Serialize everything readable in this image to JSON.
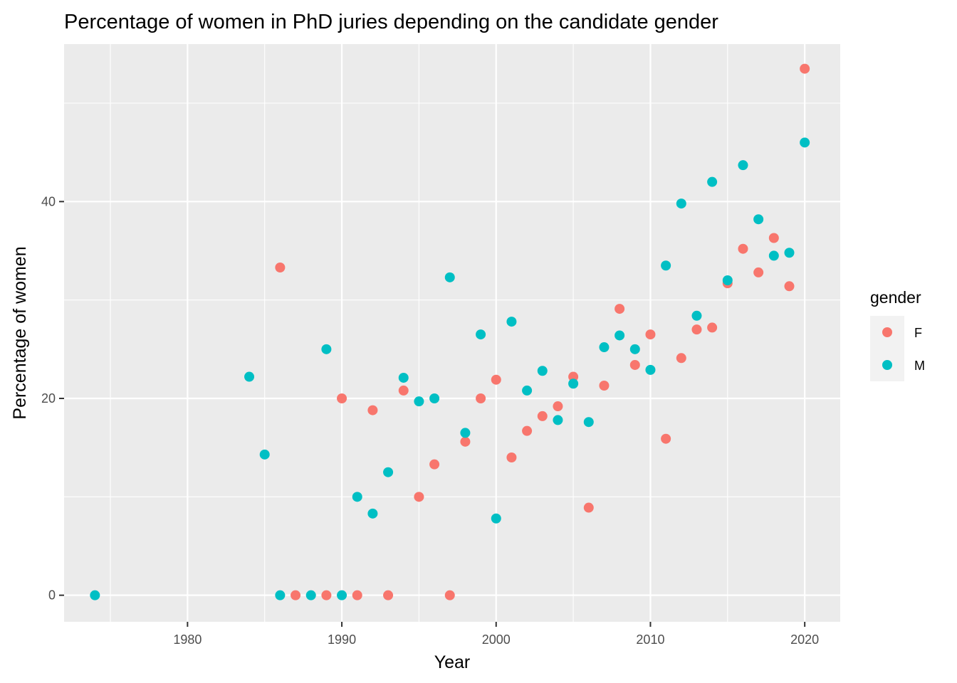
{
  "chart_data": {
    "type": "scatter",
    "title": "Percentage of women in PhD juries depending on the candidate gender",
    "xlabel": "Year",
    "ylabel": "Percentage of women",
    "xlim": [
      1972,
      2022.3
    ],
    "ylim": [
      -2.7,
      56
    ],
    "x_ticks": [
      1980,
      1990,
      2000,
      2010,
      2020
    ],
    "y_ticks": [
      0,
      20,
      40
    ],
    "grid": true,
    "legend": {
      "title": "gender",
      "position": "right"
    },
    "series": [
      {
        "name": "F",
        "color": "#F8766D",
        "points": [
          {
            "x": 1986,
            "y": 33.3
          },
          {
            "x": 1987,
            "y": 0
          },
          {
            "x": 1989,
            "y": 0
          },
          {
            "x": 1990,
            "y": 20
          },
          {
            "x": 1991,
            "y": 0
          },
          {
            "x": 1992,
            "y": 18.8
          },
          {
            "x": 1993,
            "y": 0
          },
          {
            "x": 1994,
            "y": 20.8
          },
          {
            "x": 1995,
            "y": 10
          },
          {
            "x": 1996,
            "y": 13.3
          },
          {
            "x": 1997,
            "y": 0
          },
          {
            "x": 1998,
            "y": 15.6
          },
          {
            "x": 1999,
            "y": 20
          },
          {
            "x": 2000,
            "y": 21.9
          },
          {
            "x": 2001,
            "y": 14
          },
          {
            "x": 2002,
            "y": 16.7
          },
          {
            "x": 2003,
            "y": 18.2
          },
          {
            "x": 2004,
            "y": 19.2
          },
          {
            "x": 2005,
            "y": 22.2
          },
          {
            "x": 2006,
            "y": 8.9
          },
          {
            "x": 2007,
            "y": 21.3
          },
          {
            "x": 2008,
            "y": 29.1
          },
          {
            "x": 2009,
            "y": 23.4
          },
          {
            "x": 2010,
            "y": 26.5
          },
          {
            "x": 2011,
            "y": 15.9
          },
          {
            "x": 2012,
            "y": 24.1
          },
          {
            "x": 2013,
            "y": 27
          },
          {
            "x": 2014,
            "y": 27.2
          },
          {
            "x": 2015,
            "y": 31.7
          },
          {
            "x": 2016,
            "y": 35.2
          },
          {
            "x": 2017,
            "y": 32.8
          },
          {
            "x": 2018,
            "y": 36.3
          },
          {
            "x": 2019,
            "y": 31.4
          },
          {
            "x": 2020,
            "y": 53.5
          }
        ]
      },
      {
        "name": "M",
        "color": "#00BFC4",
        "points": [
          {
            "x": 1974,
            "y": 0
          },
          {
            "x": 1984,
            "y": 22.2
          },
          {
            "x": 1985,
            "y": 14.3
          },
          {
            "x": 1986,
            "y": 0
          },
          {
            "x": 1988,
            "y": 0
          },
          {
            "x": 1989,
            "y": 25
          },
          {
            "x": 1990,
            "y": 0
          },
          {
            "x": 1991,
            "y": 10
          },
          {
            "x": 1992,
            "y": 8.3
          },
          {
            "x": 1993,
            "y": 12.5
          },
          {
            "x": 1994,
            "y": 22.1
          },
          {
            "x": 1995,
            "y": 19.7
          },
          {
            "x": 1996,
            "y": 20
          },
          {
            "x": 1997,
            "y": 32.3
          },
          {
            "x": 1998,
            "y": 16.5
          },
          {
            "x": 1999,
            "y": 26.5
          },
          {
            "x": 2000,
            "y": 7.8
          },
          {
            "x": 2001,
            "y": 27.8
          },
          {
            "x": 2002,
            "y": 20.8
          },
          {
            "x": 2003,
            "y": 22.8
          },
          {
            "x": 2004,
            "y": 17.8
          },
          {
            "x": 2005,
            "y": 21.5
          },
          {
            "x": 2006,
            "y": 17.6
          },
          {
            "x": 2007,
            "y": 25.2
          },
          {
            "x": 2008,
            "y": 26.4
          },
          {
            "x": 2009,
            "y": 25
          },
          {
            "x": 2010,
            "y": 22.9
          },
          {
            "x": 2011,
            "y": 33.5
          },
          {
            "x": 2012,
            "y": 39.8
          },
          {
            "x": 2013,
            "y": 28.4
          },
          {
            "x": 2014,
            "y": 42
          },
          {
            "x": 2015,
            "y": 32
          },
          {
            "x": 2016,
            "y": 43.7
          },
          {
            "x": 2017,
            "y": 38.2
          },
          {
            "x": 2018,
            "y": 34.5
          },
          {
            "x": 2019,
            "y": 34.8
          },
          {
            "x": 2020,
            "y": 46
          }
        ]
      }
    ]
  }
}
